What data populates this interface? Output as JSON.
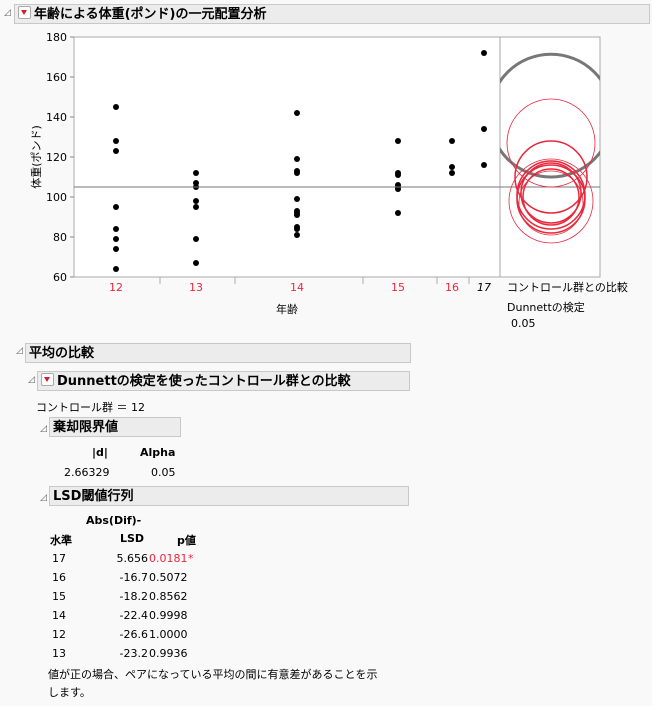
{
  "title": "年齢による体重(ポンド)の一元配置分析",
  "colors": {
    "red": "#e8283c",
    "gray": "#777777",
    "point": "#000000"
  },
  "chart_data": {
    "type": "scatter",
    "xlabel": "年齢",
    "ylabel": "体重(ポンド)",
    "ylim": [
      60,
      180
    ],
    "yticks": [
      "60",
      "80",
      "100",
      "120",
      "140",
      "160",
      "180"
    ],
    "categories": [
      "12",
      "13",
      "14",
      "15",
      "16",
      "17"
    ],
    "category_colors": [
      "#e8283c",
      "#e8283c",
      "#e8283c",
      "#e8283c",
      "#e8283c",
      "#000000"
    ],
    "points": {
      "12": [
        145,
        128,
        123,
        95,
        84,
        79,
        74,
        64
      ],
      "13": [
        112,
        107,
        105,
        98,
        95,
        79,
        67
      ],
      "14": [
        142,
        119,
        113,
        112,
        99,
        93,
        92,
        91,
        85,
        84,
        81
      ],
      "15": [
        128,
        112,
        111,
        106,
        105,
        104,
        92
      ],
      "16": [
        128,
        115,
        112
      ],
      "17": [
        172,
        134,
        116
      ]
    },
    "grand_mean": 105,
    "comparison_circles": {
      "gray": {
        "center": 140.7,
        "radius": 30.7
      },
      "red": [
        [
          127,
          22
        ],
        [
          110,
          18
        ],
        [
          101,
          17
        ],
        [
          102,
          15
        ],
        [
          100,
          14
        ],
        [
          99,
          17
        ],
        [
          97,
          16
        ],
        [
          98,
          21
        ]
      ]
    },
    "circle_label": "コントロール群との比較",
    "circle_test": "Dunnettの検定",
    "circle_alpha": "0.05"
  },
  "means": {
    "title": "平均の比較",
    "dunnett": {
      "title": "Dunnettの検定を使ったコントロール群との比較",
      "control": "コントロール群 ＝ 12",
      "crit": {
        "title": "棄却限界値",
        "headers": [
          "|d|",
          "Alpha"
        ],
        "values": [
          "2.66329",
          "0.05"
        ]
      },
      "lsd": {
        "title": "LSD閾値行列",
        "h_level": "水準",
        "h_abs1": "Abs(Dif)-",
        "h_abs2": "LSD",
        "h_p": "p値",
        "rows": [
          [
            "17",
            "5.656",
            "0.0181",
            "*"
          ],
          [
            "16",
            "-16.7",
            "0.5072",
            ""
          ],
          [
            "15",
            "-18.2",
            "0.8562",
            ""
          ],
          [
            "14",
            "-22.4",
            "0.9998",
            ""
          ],
          [
            "12",
            "-26.6",
            "1.0000",
            ""
          ],
          [
            "13",
            "-23.2",
            "0.9936",
            ""
          ]
        ],
        "note1": "値が正の場合、ペアになっている平均の間に有意差があることを示",
        "note2": "します。"
      }
    }
  }
}
